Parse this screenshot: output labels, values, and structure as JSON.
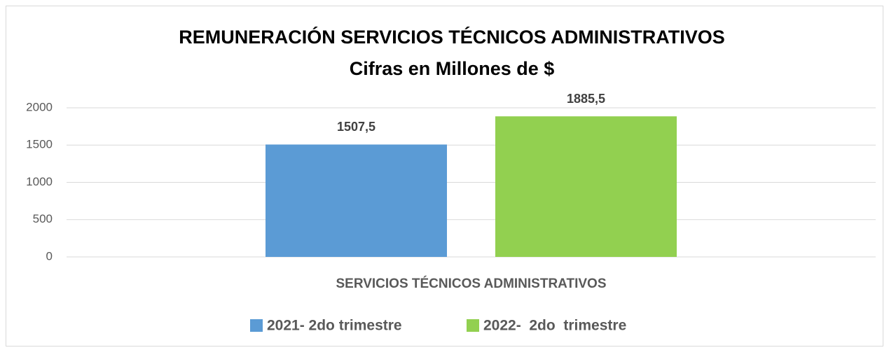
{
  "chart_data": {
    "type": "bar",
    "title": "REMUNERACIÓN SERVICIOS TÉCNICOS ADMINISTRATIVOS",
    "subtitle": "Cifras en Millones de $",
    "categories": [
      "SERVICIOS TÉCNICOS ADMINISTRATIVOS"
    ],
    "series": [
      {
        "name": "2021- 2do trimestre",
        "color": "#5b9bd5",
        "values": [
          1507.5
        ],
        "value_labels": [
          "1507,5"
        ]
      },
      {
        "name": "2022-  2do  trimestre",
        "color": "#92d050",
        "values": [
          1885.5
        ],
        "value_labels": [
          "1885,5"
        ]
      }
    ],
    "ylim": [
      0,
      2000
    ],
    "yticks": [
      0,
      500,
      1000,
      1500,
      2000
    ],
    "grid": true,
    "legend": "bottom"
  }
}
